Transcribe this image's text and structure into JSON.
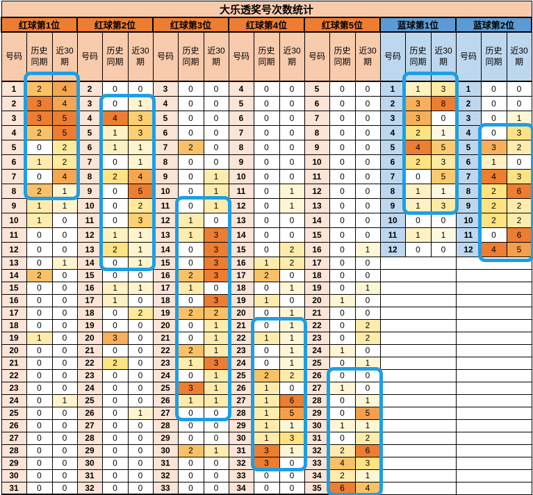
{
  "title": "大乐透奖号次数统计",
  "subheaders": {
    "number": "号码",
    "history": "历史\n同期",
    "recent": "近30\n期"
  },
  "groups": [
    {
      "label": "红球第1位",
      "type": "red",
      "start": 1,
      "rows": [
        [
          2,
          4
        ],
        [
          3,
          4
        ],
        [
          3,
          5
        ],
        [
          2,
          5
        ],
        [
          0,
          2
        ],
        [
          1,
          2
        ],
        [
          0,
          4
        ],
        [
          2,
          1
        ],
        [
          1,
          1
        ],
        [
          1,
          0
        ],
        [
          0,
          0
        ],
        [
          0,
          0
        ],
        [
          0,
          1
        ],
        [
          2,
          0
        ],
        [
          0,
          0
        ],
        [
          0,
          0
        ],
        [
          0,
          0
        ],
        [
          0,
          0
        ],
        [
          1,
          0
        ],
        [
          0,
          0
        ],
        [
          0,
          0
        ],
        [
          0,
          0
        ],
        [
          0,
          0
        ],
        [
          0,
          1
        ],
        [
          0,
          0
        ],
        [
          0,
          0
        ],
        [
          0,
          0
        ],
        [
          0,
          0
        ],
        [
          0,
          0
        ],
        [
          0,
          0
        ],
        [
          0,
          0
        ]
      ]
    },
    {
      "label": "红球第2位",
      "type": "red",
      "start": 2,
      "rows": [
        [
          0,
          0
        ],
        [
          0,
          1
        ],
        [
          4,
          3
        ],
        [
          1,
          3
        ],
        [
          1,
          1
        ],
        [
          0,
          1
        ],
        [
          2,
          4
        ],
        [
          0,
          5
        ],
        [
          0,
          2
        ],
        [
          0,
          3
        ],
        [
          1,
          1
        ],
        [
          2,
          1
        ],
        [
          0,
          1
        ],
        [
          0,
          0
        ],
        [
          1,
          1
        ],
        [
          1,
          0
        ],
        [
          0,
          2
        ],
        [
          0,
          0
        ],
        [
          3,
          0
        ],
        [
          0,
          0
        ],
        [
          2,
          0
        ],
        [
          0,
          0
        ],
        [
          0,
          0
        ],
        [
          0,
          0
        ],
        [
          0,
          1
        ],
        [
          0,
          0
        ],
        [
          0,
          0
        ],
        [
          0,
          0
        ],
        [
          0,
          0
        ],
        [
          0,
          0
        ],
        [
          0,
          0
        ]
      ]
    },
    {
      "label": "红球第3位",
      "type": "red",
      "start": 3,
      "rows": [
        [
          0,
          0
        ],
        [
          0,
          0
        ],
        [
          0,
          0
        ],
        [
          0,
          0
        ],
        [
          2,
          0
        ],
        [
          0,
          0
        ],
        [
          0,
          1
        ],
        [
          0,
          1
        ],
        [
          0,
          1
        ],
        [
          1,
          0
        ],
        [
          1,
          3
        ],
        [
          0,
          3
        ],
        [
          0,
          3
        ],
        [
          2,
          3
        ],
        [
          1,
          0
        ],
        [
          0,
          3
        ],
        [
          2,
          2
        ],
        [
          0,
          1
        ],
        [
          0,
          1
        ],
        [
          2,
          1
        ],
        [
          1,
          3
        ],
        [
          0,
          1
        ],
        [
          3,
          1
        ],
        [
          1,
          1
        ],
        [
          0,
          0
        ],
        [
          0,
          0
        ],
        [
          0,
          0
        ],
        [
          2,
          1
        ],
        [
          0,
          0
        ],
        [
          0,
          0
        ],
        [
          0,
          0
        ]
      ]
    },
    {
      "label": "红球第4位",
      "type": "red",
      "start": 4,
      "rows": [
        [
          0,
          0
        ],
        [
          0,
          0
        ],
        [
          0,
          0
        ],
        [
          0,
          0
        ],
        [
          0,
          0
        ],
        [
          0,
          0
        ],
        [
          0,
          0
        ],
        [
          0,
          1
        ],
        [
          0,
          1
        ],
        [
          0,
          0
        ],
        [
          0,
          0
        ],
        [
          0,
          2
        ],
        [
          1,
          2
        ],
        [
          2,
          0
        ],
        [
          0,
          1
        ],
        [
          1,
          0
        ],
        [
          0,
          1
        ],
        [
          0,
          1
        ],
        [
          1,
          1
        ],
        [
          0,
          1
        ],
        [
          0,
          1
        ],
        [
          2,
          2
        ],
        [
          1,
          0
        ],
        [
          1,
          6
        ],
        [
          1,
          5
        ],
        [
          1,
          1
        ],
        [
          1,
          3
        ],
        [
          3,
          1
        ],
        [
          3,
          0
        ],
        [
          0,
          0
        ],
        [
          0,
          0
        ]
      ]
    },
    {
      "label": "红球第5位",
      "type": "red",
      "start": 5,
      "rows": [
        [
          0,
          0
        ],
        [
          0,
          0
        ],
        [
          0,
          0
        ],
        [
          0,
          0
        ],
        [
          0,
          0
        ],
        [
          0,
          0
        ],
        [
          0,
          0
        ],
        [
          0,
          0
        ],
        [
          0,
          0
        ],
        [
          0,
          0
        ],
        [
          0,
          0
        ],
        [
          0,
          1
        ],
        [
          0,
          0
        ],
        [
          0,
          0
        ],
        [
          0,
          1
        ],
        [
          1,
          0
        ],
        [
          0,
          0
        ],
        [
          0,
          2
        ],
        [
          0,
          2
        ],
        [
          1,
          0
        ],
        [
          0,
          1
        ],
        [
          0,
          0
        ],
        [
          1,
          0
        ],
        [
          0,
          1
        ],
        [
          0,
          5
        ],
        [
          1,
          1
        ],
        [
          0,
          2
        ],
        [
          2,
          6
        ],
        [
          4,
          3
        ],
        [
          2,
          1
        ],
        [
          6,
          4
        ]
      ]
    },
    {
      "label": "蓝球第1位",
      "type": "blue",
      "start": 1,
      "rows": [
        [
          1,
          3
        ],
        [
          3,
          8
        ],
        [
          3,
          0
        ],
        [
          2,
          1
        ],
        [
          4,
          5
        ],
        [
          2,
          3
        ],
        [
          0,
          5
        ],
        [
          1,
          1
        ],
        [
          1,
          3
        ],
        [
          0,
          0
        ],
        [
          1,
          1
        ],
        [
          0,
          0
        ]
      ]
    },
    {
      "label": "蓝球第2位",
      "type": "blue",
      "start": 1,
      "rows": [
        [
          0,
          0
        ],
        [
          0,
          0
        ],
        [
          0,
          1
        ],
        [
          0,
          3
        ],
        [
          3,
          2
        ],
        [
          1,
          0
        ],
        [
          4,
          3
        ],
        [
          2,
          6
        ],
        [
          2,
          2
        ],
        [
          2,
          2
        ],
        [
          0,
          6
        ],
        [
          4,
          5
        ]
      ]
    }
  ],
  "highlights": [
    {
      "group": 0,
      "from": 1,
      "to": 8,
      "extend_top": true
    },
    {
      "group": 1,
      "from": 3,
      "to": 14
    },
    {
      "group": 2,
      "from": 11,
      "to": 27
    },
    {
      "group": 3,
      "from": 21,
      "to": 32
    },
    {
      "group": 4,
      "from": 26,
      "to": 35
    },
    {
      "group": 5,
      "from": 1,
      "to": 9,
      "extend_top": true
    },
    {
      "group": 6,
      "from": 4,
      "to": 12,
      "extend_bottom": true
    }
  ],
  "colors": {
    "title_bg": "#F8CBAD",
    "red_header_bg": "#ED7D31",
    "red_header_text": "#843C0C",
    "blue_header_bg": "#5B9BD5",
    "blue_header_text": "#1F3864",
    "red_sub_bg": "#F8CBAD",
    "blue_sub_bg": "#BDD7EE",
    "red_num_bg": "#FCE4D6",
    "blue_num_bg": "#BDD7EE",
    "heat_mid": "#FFE382",
    "heat_max": "#ED7D31",
    "zero_text": "#7F7F7F",
    "one_text": "#3A3A3A",
    "green_text": "#538135",
    "highlight": "#1E9EE4"
  }
}
